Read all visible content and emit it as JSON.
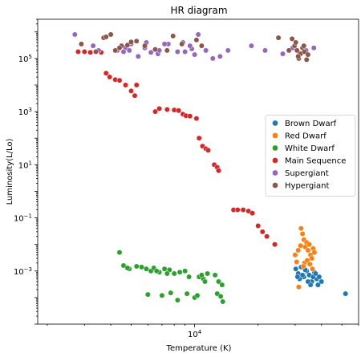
{
  "chart_data": {
    "type": "scatter",
    "title": "HR diagram",
    "xlabel": "Temperature (K)",
    "ylabel": "Luminosity(L/Lo)",
    "xscale": "log",
    "yscale": "log",
    "xlim": [
      1800,
      60000
    ],
    "ylim": [
      1e-05,
      3000000
    ],
    "x_major_ticks": [
      {
        "value": 10000,
        "label": "10^4"
      }
    ],
    "y_major_ticks": [
      {
        "value": 0.001,
        "label": "10^-3"
      },
      {
        "value": 0.1,
        "label": "10^-1"
      },
      {
        "value": 10,
        "label": "10^1"
      },
      {
        "value": 1000,
        "label": "10^3"
      },
      {
        "value": 100000,
        "label": "10^5"
      }
    ],
    "grid": false,
    "legend_position": "center-right",
    "series": [
      {
        "name": "Brown Dwarf",
        "color": "#1f77b4",
        "points": [
          [
            30200,
            0.0012
          ],
          [
            31000,
            0.0008
          ],
          [
            32000,
            0.0014
          ],
          [
            33000,
            0.0006
          ],
          [
            34000,
            0.001
          ],
          [
            35000,
            0.0007
          ],
          [
            36000,
            0.0004
          ],
          [
            37000,
            0.0009
          ],
          [
            38000,
            0.0005
          ],
          [
            39000,
            0.0006
          ],
          [
            40000,
            0.0004
          ],
          [
            31500,
            0.0005
          ],
          [
            33500,
            0.0011
          ],
          [
            35500,
            0.0003
          ],
          [
            36500,
            0.0006
          ],
          [
            37500,
            0.0008
          ],
          [
            34500,
            0.0004
          ],
          [
            32500,
            0.0007
          ],
          [
            38500,
            0.0003
          ],
          [
            30800,
            0.0006
          ],
          [
            52000,
            0.00014
          ]
        ]
      },
      {
        "name": "Red Dwarf",
        "color": "#ff7f0e",
        "points": [
          [
            30000,
            0.004
          ],
          [
            31000,
            0.006
          ],
          [
            32000,
            0.04
          ],
          [
            32500,
            0.025
          ],
          [
            33000,
            0.015
          ],
          [
            31800,
            0.009
          ],
          [
            33500,
            0.008
          ],
          [
            34000,
            0.012
          ],
          [
            34500,
            0.006
          ],
          [
            35000,
            0.01
          ],
          [
            35500,
            0.004
          ],
          [
            36000,
            0.003
          ],
          [
            36500,
            0.007
          ],
          [
            37000,
            0.005
          ],
          [
            33200,
            0.002
          ],
          [
            34200,
            0.0025
          ],
          [
            35200,
            0.0018
          ],
          [
            36200,
            0.0012
          ],
          [
            30500,
            0.0022
          ],
          [
            31200,
            0.00025
          ],
          [
            32800,
            0.0015
          ]
        ]
      },
      {
        "name": "White Dwarf",
        "color": "#2ca02c",
        "points": [
          [
            4400,
            0.005
          ],
          [
            6000,
            0.00013
          ],
          [
            4600,
            0.0016
          ],
          [
            4900,
            0.0012
          ],
          [
            5300,
            0.0015
          ],
          [
            5600,
            0.0014
          ],
          [
            5900,
            0.0012
          ],
          [
            6200,
            0.001
          ],
          [
            6400,
            0.0013
          ],
          [
            6800,
            0.0009
          ],
          [
            7200,
            0.0012
          ],
          [
            7600,
            0.0011
          ],
          [
            8000,
            0.0008
          ],
          [
            8500,
            0.0009
          ],
          [
            9000,
            0.001
          ],
          [
            10500,
            0.0006
          ],
          [
            11000,
            0.0005
          ],
          [
            11500,
            0.0008
          ],
          [
            12500,
            0.0007
          ],
          [
            13000,
            0.0004
          ],
          [
            13500,
            0.0003
          ],
          [
            7000,
            0.00012
          ],
          [
            7700,
            0.00015
          ],
          [
            8300,
            8e-05
          ],
          [
            9200,
            0.00014
          ],
          [
            10000,
            0.0001
          ],
          [
            10300,
            0.00012
          ],
          [
            12800,
            0.00014
          ],
          [
            13300,
            0.00011
          ],
          [
            13600,
            7e-05
          ],
          [
            4800,
            0.0013
          ],
          [
            6600,
            0.001
          ],
          [
            7400,
            0.0008
          ],
          [
            11200,
            0.0004
          ],
          [
            9400,
            0.0006
          ],
          [
            10800,
            0.0007
          ]
        ]
      },
      {
        "name": "Main Sequence",
        "color": "#d62728",
        "points": [
          [
            2800,
            180000
          ],
          [
            3000,
            180000
          ],
          [
            3200,
            170000
          ],
          [
            3400,
            180000
          ],
          [
            3600,
            170000
          ],
          [
            3800,
            28000
          ],
          [
            3950,
            20000
          ],
          [
            4200,
            16000
          ],
          [
            4400,
            15000
          ],
          [
            4700,
            10000
          ],
          [
            5000,
            6000
          ],
          [
            5300,
            10000
          ],
          [
            5200,
            4000
          ],
          [
            6500,
            1000
          ],
          [
            6800,
            1300
          ],
          [
            7400,
            1200
          ],
          [
            8000,
            1150
          ],
          [
            8400,
            1100
          ],
          [
            8800,
            800
          ],
          [
            9100,
            700
          ],
          [
            9500,
            680
          ],
          [
            10200,
            550
          ],
          [
            10500,
            100
          ],
          [
            10900,
            50
          ],
          [
            11300,
            40
          ],
          [
            11600,
            35
          ],
          [
            12400,
            10
          ],
          [
            12800,
            8
          ],
          [
            13000,
            6
          ],
          [
            15300,
            0.2
          ],
          [
            16000,
            0.2
          ],
          [
            17000,
            0.2
          ],
          [
            18000,
            0.18
          ],
          [
            18800,
            0.15
          ],
          [
            20000,
            0.05
          ],
          [
            21000,
            0.03
          ],
          [
            22000,
            0.02
          ],
          [
            24000,
            0.01
          ]
        ]
      },
      {
        "name": "Supergiant",
        "color": "#9467bd",
        "points": [
          [
            2700,
            800000
          ],
          [
            3300,
            300000
          ],
          [
            3500,
            200000
          ],
          [
            4300,
            200000
          ],
          [
            4700,
            260000
          ],
          [
            4900,
            200000
          ],
          [
            5000,
            350000
          ],
          [
            5400,
            120000
          ],
          [
            5800,
            250000
          ],
          [
            6200,
            170000
          ],
          [
            6700,
            150000
          ],
          [
            6800,
            200000
          ],
          [
            7500,
            350000
          ],
          [
            8300,
            180000
          ],
          [
            8800,
            400000
          ],
          [
            9000,
            180000
          ],
          [
            9700,
            230000
          ],
          [
            10000,
            140000
          ],
          [
            10400,
            800000
          ],
          [
            11300,
            200000
          ],
          [
            12200,
            100000
          ],
          [
            13200,
            120000
          ],
          [
            14400,
            200000
          ],
          [
            18600,
            300000
          ],
          [
            21600,
            200000
          ],
          [
            26200,
            150000
          ],
          [
            29200,
            250000
          ],
          [
            31500,
            160000
          ],
          [
            33800,
            200000
          ],
          [
            36800,
            250000
          ],
          [
            9500,
            300000
          ],
          [
            7200,
            350000
          ],
          [
            4600,
            180000
          ],
          [
            5900,
            400000
          ]
        ]
      },
      {
        "name": "Hypergiant",
        "color": "#8c564b",
        "points": [
          [
            2900,
            350000
          ],
          [
            3400,
            180000
          ],
          [
            3700,
            600000
          ],
          [
            4000,
            800000
          ],
          [
            4200,
            200000
          ],
          [
            4500,
            300000
          ],
          [
            4800,
            320000
          ],
          [
            5000,
            420000
          ],
          [
            5300,
            450000
          ],
          [
            5800,
            300000
          ],
          [
            6500,
            220000
          ],
          [
            7400,
            200000
          ],
          [
            7900,
            700000
          ],
          [
            8700,
            350000
          ],
          [
            10200,
            500000
          ],
          [
            10800,
            300000
          ],
          [
            25000,
            600000
          ],
          [
            29000,
            550000
          ],
          [
            29800,
            300000
          ],
          [
            30600,
            200000
          ],
          [
            31200,
            100000
          ],
          [
            31800,
            150000
          ],
          [
            32500,
            250000
          ],
          [
            33200,
            180000
          ],
          [
            34000,
            90000
          ],
          [
            34500,
            140000
          ],
          [
            30200,
            400000
          ],
          [
            28000,
            200000
          ],
          [
            31000,
            120000
          ],
          [
            33000,
            300000
          ],
          [
            3800,
            650000
          ],
          [
            4400,
            250000
          ]
        ]
      }
    ]
  }
}
